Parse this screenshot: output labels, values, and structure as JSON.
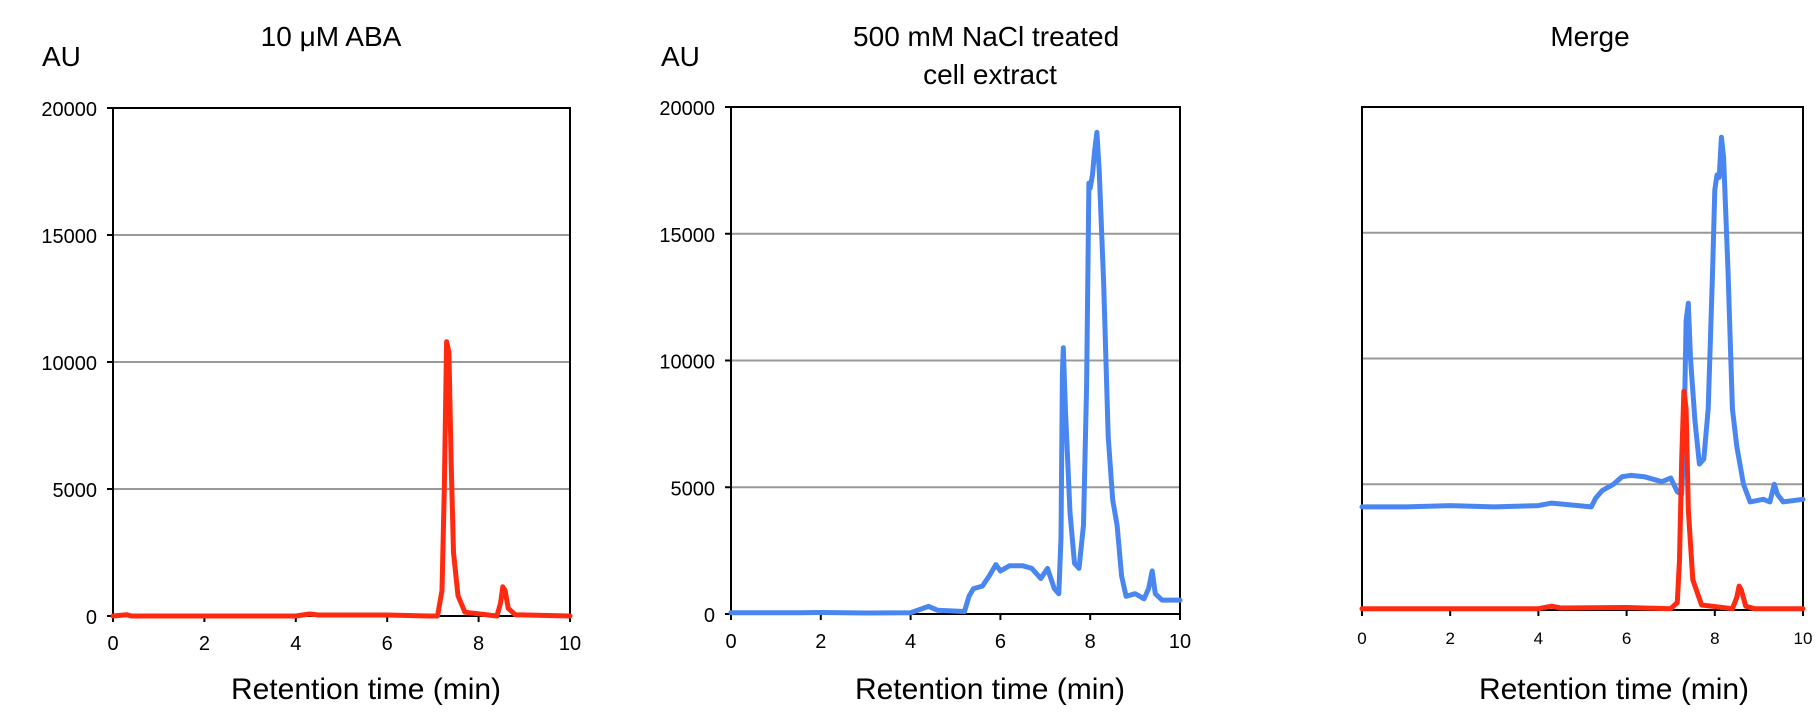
{
  "chart_data": [
    {
      "type": "line",
      "title": "10 μM ABA",
      "ylabel": "AU",
      "xlabel": "Retention time (min)",
      "xlim": [
        0,
        10
      ],
      "ylim": [
        0,
        20000
      ],
      "x_ticks": [
        "0",
        "2",
        "4",
        "6",
        "8",
        "10"
      ],
      "y_ticks": [
        "0",
        "5000",
        "10000",
        "15000",
        "20000"
      ],
      "grid": "horizontal",
      "series": [
        {
          "color": "#ff2a10",
          "points": [
            [
              0,
              0
            ],
            [
              0.3,
              50
            ],
            [
              0.4,
              0
            ],
            [
              2,
              0
            ],
            [
              4,
              0
            ],
            [
              4.3,
              80
            ],
            [
              4.5,
              40
            ],
            [
              6,
              40
            ],
            [
              6.9,
              0
            ],
            [
              7.1,
              0
            ],
            [
              7.2,
              1000
            ],
            [
              7.25,
              5000
            ],
            [
              7.3,
              10800
            ],
            [
              7.35,
              10400
            ],
            [
              7.4,
              6000
            ],
            [
              7.45,
              2500
            ],
            [
              7.55,
              800
            ],
            [
              7.7,
              150
            ],
            [
              8.4,
              0
            ],
            [
              8.48,
              500
            ],
            [
              8.53,
              1150
            ],
            [
              8.58,
              1000
            ],
            [
              8.65,
              300
            ],
            [
              8.8,
              50
            ],
            [
              10,
              0
            ]
          ]
        }
      ]
    },
    {
      "type": "line",
      "title": "500 mM NaCl treated cell extract",
      "ylabel": "AU",
      "xlabel": "Retention time (min)",
      "xlim": [
        0,
        10
      ],
      "ylim": [
        0,
        20000
      ],
      "x_ticks": [
        "0",
        "2",
        "4",
        "6",
        "8",
        "10"
      ],
      "y_ticks": [
        "0",
        "5000",
        "10000",
        "15000",
        "20000"
      ],
      "grid": "horizontal",
      "series": [
        {
          "color": "#4a86f0",
          "points": [
            [
              0,
              50
            ],
            [
              1.5,
              50
            ],
            [
              2,
              60
            ],
            [
              3,
              40
            ],
            [
              4,
              50
            ],
            [
              4.4,
              300
            ],
            [
              4.6,
              150
            ],
            [
              5.2,
              100
            ],
            [
              5.3,
              700
            ],
            [
              5.4,
              1000
            ],
            [
              5.6,
              1100
            ],
            [
              5.75,
              1500
            ],
            [
              5.9,
              1950
            ],
            [
              6,
              1700
            ],
            [
              6.2,
              1900
            ],
            [
              6.5,
              1900
            ],
            [
              6.7,
              1800
            ],
            [
              6.9,
              1400
            ],
            [
              7.05,
              1800
            ],
            [
              7.2,
              1000
            ],
            [
              7.3,
              800
            ],
            [
              7.35,
              3000
            ],
            [
              7.38,
              9500
            ],
            [
              7.4,
              10500
            ],
            [
              7.45,
              8000
            ],
            [
              7.55,
              4000
            ],
            [
              7.65,
              2000
            ],
            [
              7.75,
              1800
            ],
            [
              7.85,
              3500
            ],
            [
              7.92,
              9000
            ],
            [
              7.97,
              17000
            ],
            [
              8.0,
              16800
            ],
            [
              8.05,
              17300
            ],
            [
              8.1,
              18300
            ],
            [
              8.15,
              19000
            ],
            [
              8.2,
              17500
            ],
            [
              8.3,
              13000
            ],
            [
              8.4,
              7000
            ],
            [
              8.5,
              4500
            ],
            [
              8.6,
              3500
            ],
            [
              8.7,
              1500
            ],
            [
              8.8,
              700
            ],
            [
              9.0,
              800
            ],
            [
              9.2,
              600
            ],
            [
              9.3,
              1000
            ],
            [
              9.38,
              1700
            ],
            [
              9.45,
              800
            ],
            [
              9.6,
              550
            ],
            [
              10,
              550
            ]
          ]
        }
      ]
    },
    {
      "type": "line",
      "title": "Merge",
      "ylabel": "",
      "xlabel": "Retention time (min)",
      "xlim": [
        0,
        10
      ],
      "ylim": [
        0,
        20000
      ],
      "x_ticks": [
        "0",
        "2",
        "4",
        "6",
        "8",
        "10"
      ],
      "y_ticks": [],
      "grid": "horizontal",
      "series": [
        {
          "color": "#4a86f0",
          "points": [
            [
              0,
              4100
            ],
            [
              1,
              4100
            ],
            [
              2,
              4150
            ],
            [
              3,
              4100
            ],
            [
              4,
              4150
            ],
            [
              4.3,
              4250
            ],
            [
              4.6,
              4200
            ],
            [
              5.2,
              4100
            ],
            [
              5.3,
              4450
            ],
            [
              5.45,
              4750
            ],
            [
              5.7,
              5000
            ],
            [
              5.9,
              5300
            ],
            [
              6.1,
              5350
            ],
            [
              6.4,
              5300
            ],
            [
              6.8,
              5100
            ],
            [
              7.0,
              5250
            ],
            [
              7.15,
              4700
            ],
            [
              7.25,
              4600
            ],
            [
              7.3,
              6500
            ],
            [
              7.35,
              11500
            ],
            [
              7.4,
              12200
            ],
            [
              7.45,
              10000
            ],
            [
              7.55,
              7500
            ],
            [
              7.65,
              5800
            ],
            [
              7.75,
              6000
            ],
            [
              7.85,
              8000
            ],
            [
              7.95,
              13500
            ],
            [
              8.0,
              16700
            ],
            [
              8.05,
              17300
            ],
            [
              8.1,
              17200
            ],
            [
              8.15,
              18800
            ],
            [
              8.2,
              18000
            ],
            [
              8.3,
              13500
            ],
            [
              8.4,
              8000
            ],
            [
              8.5,
              6500
            ],
            [
              8.65,
              5000
            ],
            [
              8.8,
              4300
            ],
            [
              9.1,
              4400
            ],
            [
              9.25,
              4300
            ],
            [
              9.35,
              5000
            ],
            [
              9.42,
              4600
            ],
            [
              9.55,
              4300
            ],
            [
              10,
              4400
            ]
          ]
        },
        {
          "color": "#ff2a10",
          "points": [
            [
              0,
              50
            ],
            [
              2,
              50
            ],
            [
              4,
              50
            ],
            [
              4.3,
              150
            ],
            [
              4.5,
              80
            ],
            [
              6,
              100
            ],
            [
              7.0,
              50
            ],
            [
              7.15,
              300
            ],
            [
              7.2,
              2000
            ],
            [
              7.25,
              6000
            ],
            [
              7.3,
              8700
            ],
            [
              7.35,
              8000
            ],
            [
              7.4,
              4000
            ],
            [
              7.5,
              1200
            ],
            [
              7.7,
              200
            ],
            [
              8.4,
              50
            ],
            [
              8.5,
              500
            ],
            [
              8.55,
              950
            ],
            [
              8.6,
              800
            ],
            [
              8.7,
              150
            ],
            [
              8.9,
              50
            ],
            [
              10,
              50
            ]
          ]
        }
      ]
    }
  ]
}
